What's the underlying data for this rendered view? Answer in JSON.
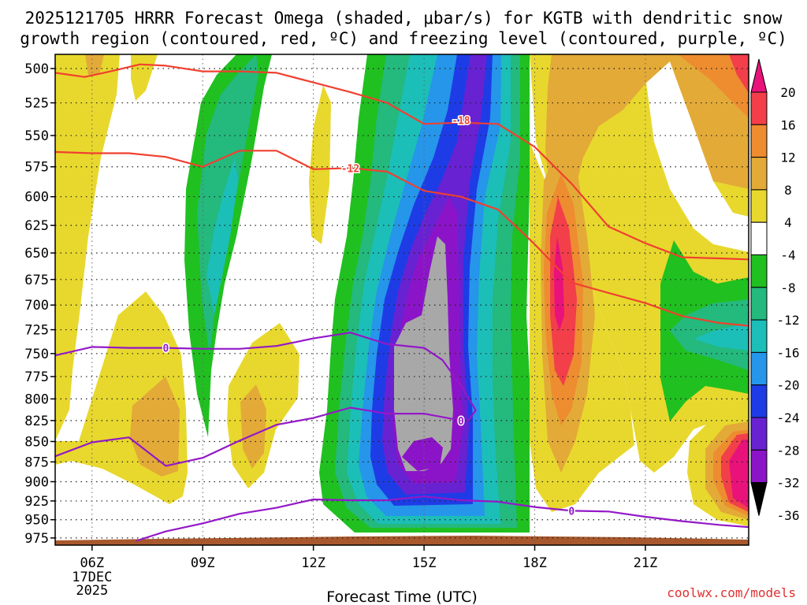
{
  "title": {
    "line1": "2025121705 HRRR Forecast Omega (shaded, μbar/s) for KGTB with dendritic snow",
    "line2": "growth region (contoured, red, ºC) and freezing level (contoured, purple, ºC)"
  },
  "credit": "coolwx.com/models",
  "chart_data": {
    "type": "heatmap",
    "title": "2025121705 HRRR Forecast Omega (shaded, μbar/s) for KGTB with dendritic snow growth region (contoured, red, ºC) and freezing level (contoured, purple, ºC)",
    "xlabel": "Forecast Time (UTC)",
    "ylabel": "",
    "x_ticks": [
      "06Z",
      "09Z",
      "12Z",
      "15Z",
      "18Z",
      "21Z"
    ],
    "x_tick_hours": [
      6,
      9,
      12,
      15,
      18,
      21
    ],
    "x_date_label": [
      "17DEC",
      "2025"
    ],
    "xlim": [
      5,
      23.8
    ],
    "y_ticks": [
      500,
      525,
      550,
      575,
      600,
      625,
      650,
      675,
      700,
      725,
      750,
      775,
      800,
      825,
      850,
      875,
      900,
      925,
      950,
      975
    ],
    "ylim": [
      490,
      985
    ],
    "y_scale": "log-pressure (inverted)",
    "grid": true,
    "colorbar": {
      "labels": [
        "20",
        "16",
        "12",
        "8",
        "4",
        "-4",
        "-8",
        "-12",
        "-16",
        "-20",
        "-24",
        "-28",
        "-32",
        "-36"
      ],
      "bands": [
        {
          "range": "> 20",
          "color": "#e8127a"
        },
        {
          "range": "16 to 20",
          "color": "#f23f4a"
        },
        {
          "range": "12 to 16",
          "color": "#ee8c30"
        },
        {
          "range": "8 to 12",
          "color": "#e3aa38"
        },
        {
          "range": "4 to 8",
          "color": "#e8d82d"
        },
        {
          "range": "-4 to 4",
          "color": "#ffffff"
        },
        {
          "range": "-8 to -4",
          "color": "#20c020"
        },
        {
          "range": "-12 to -8",
          "color": "#24b97d"
        },
        {
          "range": "-16 to -12",
          "color": "#1cbeb8"
        },
        {
          "range": "-20 to -16",
          "color": "#2596ea"
        },
        {
          "range": "-24 to -20",
          "color": "#1e3ce6"
        },
        {
          "range": "-28 to -24",
          "color": "#6822d2"
        },
        {
          "range": "-32 to -28",
          "color": "#8c14c8"
        },
        {
          "range": "< -32",
          "color": "#a8a8a8"
        }
      ]
    },
    "omega_regions": [
      {
        "name": "ascent core",
        "min": -36,
        "approx_time_range": [
          13.2,
          17.3
        ],
        "approx_pressure_range": [
          505,
          975
        ]
      },
      {
        "name": "weak ascent west",
        "min": -16,
        "approx_time_range": [
          8.4,
          10.6
        ],
        "approx_pressure_range": [
          500,
          850
        ]
      },
      {
        "name": "descent east",
        "max": 20,
        "approx_time_range": [
          17.3,
          23.8
        ],
        "approx_pressure_range": [
          490,
          900
        ]
      },
      {
        "name": "ascent far east",
        "min": -12,
        "approx_time_range": [
          20.8,
          23.8
        ],
        "approx_pressure_range": [
          655,
          820
        ]
      },
      {
        "name": "descent lower east",
        "max": 20,
        "approx_time_range": [
          22.1,
          23.8
        ],
        "approx_pressure_range": [
          820,
          960
        ]
      }
    ],
    "series": [
      {
        "name": "-18",
        "kind": "dendritic temperature contour",
        "color": "#f04030",
        "x": [
          5.0,
          5.8,
          6.5,
          7.3,
          8.0,
          9.0,
          10.0,
          11.0,
          12.0,
          13.0,
          14.0,
          15.0,
          16.0,
          17.0,
          18.0,
          19.0,
          20.0,
          21.0,
          22.0,
          23.0,
          23.8
        ],
        "y": [
          503,
          506,
          502,
          497,
          498,
          502,
          502,
          503,
          510,
          517,
          525,
          541,
          540,
          541,
          559,
          589,
          626,
          641,
          654,
          655,
          656
        ]
      },
      {
        "name": "-12",
        "kind": "dendritic temperature contour",
        "color": "#f04030",
        "x": [
          5.0,
          6.0,
          7.0,
          8.0,
          9.0,
          10.0,
          11.0,
          12.0,
          13.0,
          14.0,
          15.0,
          16.0,
          17.0,
          18.0,
          19.0,
          20.0,
          21.0,
          22.0,
          23.0,
          23.8
        ],
        "y": [
          563,
          564,
          564,
          567,
          575,
          562,
          562,
          577,
          576,
          579,
          595,
          600,
          611,
          642,
          678,
          688,
          698,
          711,
          718,
          721
        ]
      },
      {
        "name": "0",
        "kind": "freezing level contour (upper)",
        "color": "#9418c8",
        "x": [
          5.0,
          6.0,
          7.0,
          8.0,
          9.0,
          10.0,
          11.0,
          12.0,
          13.0,
          14.0,
          15.0,
          15.5,
          16.0,
          16.4,
          16.2
        ],
        "y": [
          752,
          743,
          744,
          744,
          745,
          745,
          742,
          734,
          728,
          740,
          744,
          757,
          785,
          813,
          825
        ]
      },
      {
        "name": "0",
        "kind": "freezing level contour (middle)",
        "color": "#9418c8",
        "x": [
          5.0,
          6.0,
          7.0,
          8.0,
          9.0,
          10.0,
          11.0,
          12.0,
          13.0,
          14.0,
          15.0,
          16.0
        ],
        "y": [
          868,
          851,
          845,
          880,
          870,
          849,
          830,
          822,
          810,
          817,
          817,
          825
        ]
      },
      {
        "name": "0",
        "kind": "freezing level contour (lower)",
        "color": "#9418c8",
        "x": [
          7.2,
          8.0,
          9.0,
          10.0,
          11.0,
          12.0,
          13.0,
          14.0,
          15.0,
          16.0,
          17.0,
          18.0,
          19.0,
          20.0,
          21.0,
          22.0,
          23.0,
          23.8
        ],
        "y": [
          979,
          966,
          955,
          942,
          934,
          923,
          924,
          924,
          919,
          924,
          926,
          933,
          938,
          939,
          946,
          952,
          957,
          960
        ]
      }
    ],
    "contour_labels": [
      {
        "text": "-18",
        "x": 16.0,
        "y": 538
      },
      {
        "text": "-12",
        "x": 13.0,
        "y": 576
      },
      {
        "text": "0",
        "x": 8.0,
        "y": 744
      },
      {
        "text": "0",
        "x": 16.0,
        "y": 825
      },
      {
        "text": "0",
        "x": 19.0,
        "y": 938
      }
    ]
  }
}
